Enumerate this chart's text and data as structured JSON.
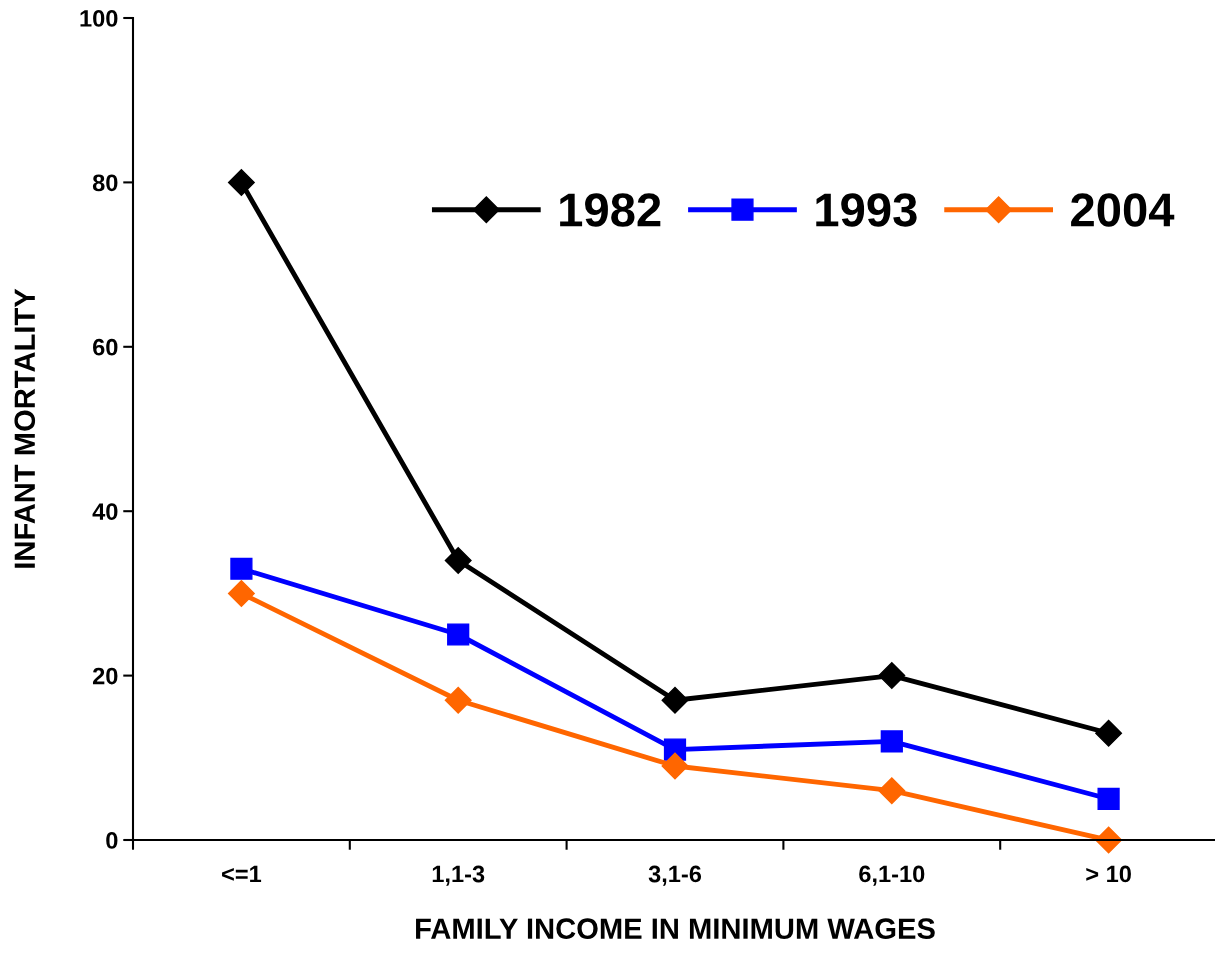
{
  "chart_data": {
    "type": "line",
    "xlabel": "FAMILY INCOME IN MINIMUM WAGES",
    "ylabel": "INFANT MORTALITY",
    "categories": [
      "<=1",
      "1,1-3",
      "3,1-6",
      "6,1-10",
      "> 10"
    ],
    "series": [
      {
        "name": "1982",
        "color": "#000000",
        "marker": "diamond",
        "values": [
          80,
          34,
          17,
          20,
          13
        ]
      },
      {
        "name": "1993",
        "color": "#0000ff",
        "marker": "square",
        "values": [
          33,
          25,
          11,
          12,
          5
        ]
      },
      {
        "name": "2004",
        "color": "#ff6600",
        "marker": "diamond",
        "values": [
          30,
          17,
          9,
          6,
          0
        ]
      }
    ],
    "ylim": [
      0,
      100
    ],
    "yticks": [
      0,
      20,
      40,
      60,
      80,
      100
    ],
    "grid": false,
    "legend": "top right",
    "line_style": "solid"
  }
}
